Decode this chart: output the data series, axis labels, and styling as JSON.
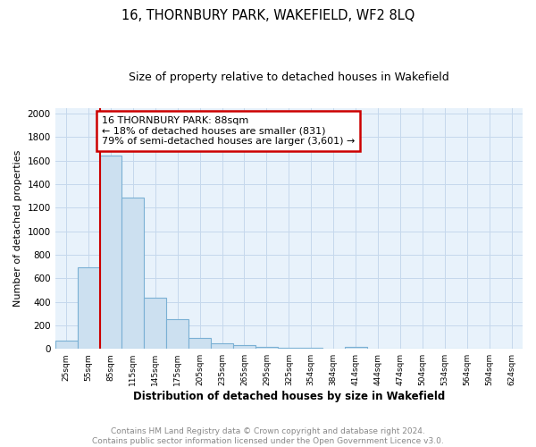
{
  "title": "16, THORNBURY PARK, WAKEFIELD, WF2 8LQ",
  "subtitle": "Size of property relative to detached houses in Wakefield",
  "xlabel": "Distribution of detached houses by size in Wakefield",
  "ylabel": "Number of detached properties",
  "annotation_line1": "16 THORNBURY PARK: 88sqm",
  "annotation_line2": "← 18% of detached houses are smaller (831)",
  "annotation_line3": "79% of semi-detached houses are larger (3,601) →",
  "bar_color": "#cce0f0",
  "bar_edge_color": "#7ab0d4",
  "vline_color": "#cc0000",
  "annotation_box_edge_color": "#cc0000",
  "grid_color": "#c5d8ec",
  "background_color": "#e8f2fb",
  "categories": [
    "25sqm",
    "55sqm",
    "85sqm",
    "115sqm",
    "145sqm",
    "175sqm",
    "205sqm",
    "235sqm",
    "265sqm",
    "295sqm",
    "325sqm",
    "354sqm",
    "384sqm",
    "414sqm",
    "444sqm",
    "474sqm",
    "504sqm",
    "534sqm",
    "564sqm",
    "594sqm",
    "624sqm"
  ],
  "values": [
    70,
    690,
    1640,
    1290,
    435,
    253,
    90,
    50,
    30,
    20,
    10,
    8,
    5,
    15,
    0,
    0,
    0,
    0,
    0,
    0,
    0
  ],
  "ylim": [
    0,
    2050
  ],
  "yticks": [
    0,
    200,
    400,
    600,
    800,
    1000,
    1200,
    1400,
    1600,
    1800,
    2000
  ],
  "footer_line1": "Contains HM Land Registry data © Crown copyright and database right 2024.",
  "footer_line2": "Contains public sector information licensed under the Open Government Licence v3.0."
}
